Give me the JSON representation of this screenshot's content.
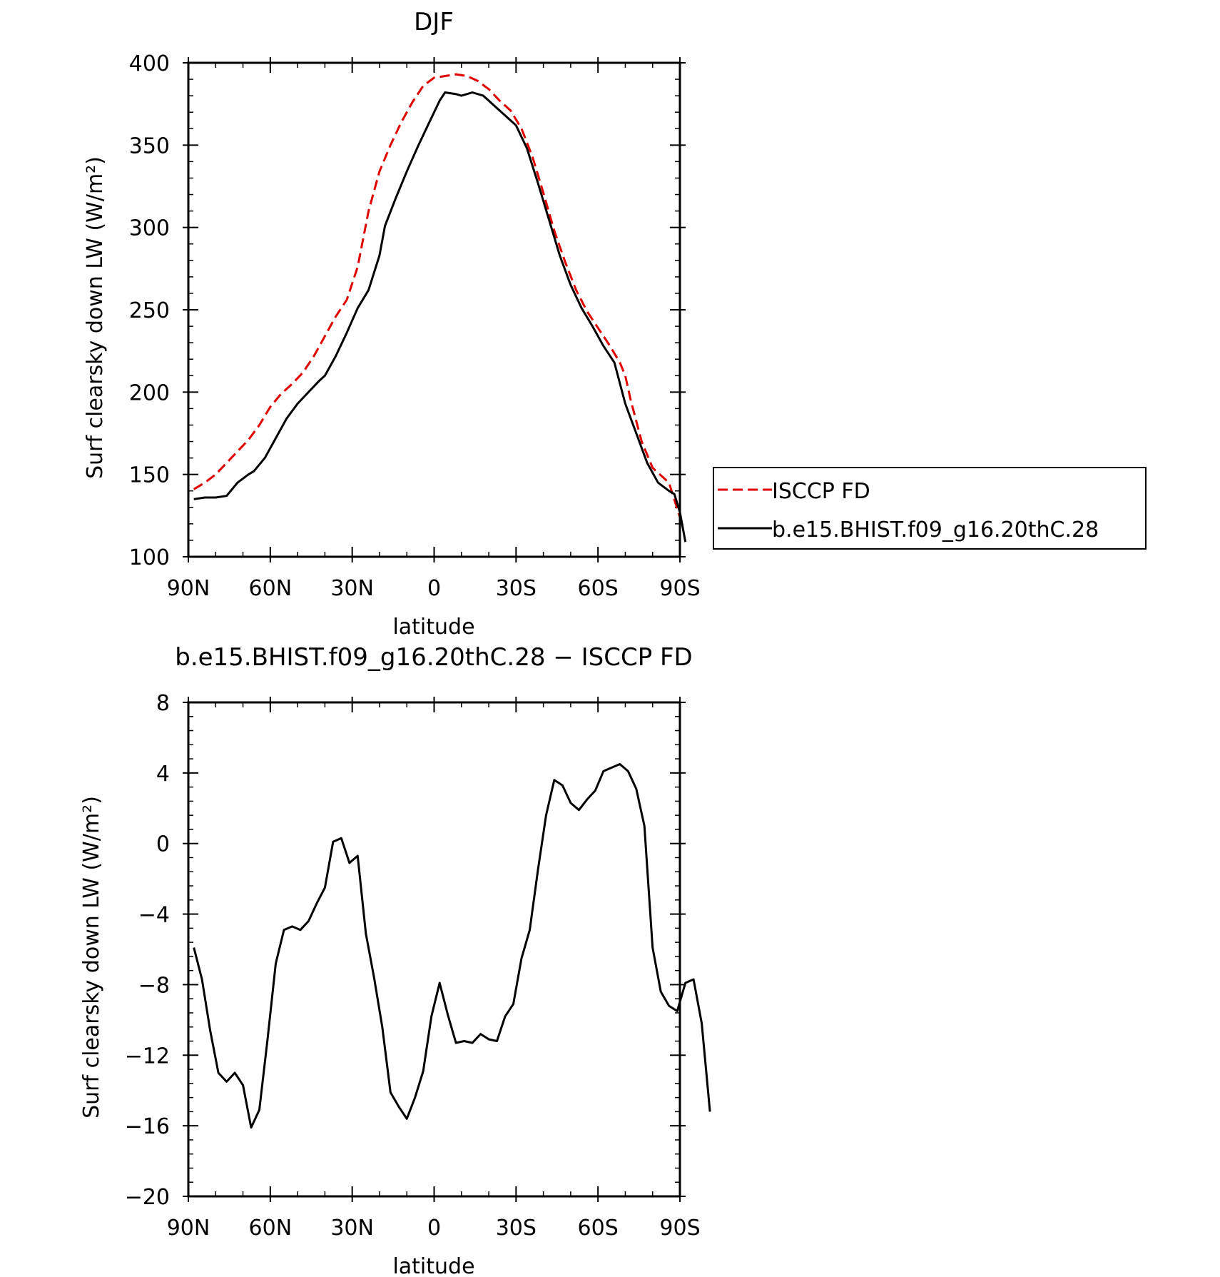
{
  "chart_data": [
    {
      "type": "line",
      "title": "DJF",
      "xlabel": "latitude",
      "ylabel": "Surf clearsky down LW (W/m²)",
      "xlim": [
        90,
        -90
      ],
      "ylim": [
        100,
        400
      ],
      "xticks": [
        {
          "value": 90,
          "label": "90N"
        },
        {
          "value": 60,
          "label": "60N"
        },
        {
          "value": 30,
          "label": "30N"
        },
        {
          "value": 0,
          "label": "0"
        },
        {
          "value": -30,
          "label": "30S"
        },
        {
          "value": -60,
          "label": "60S"
        },
        {
          "value": -90,
          "label": "90S"
        }
      ],
      "yticks": [
        {
          "value": 100,
          "label": "100"
        },
        {
          "value": 150,
          "label": "150"
        },
        {
          "value": 200,
          "label": "200"
        },
        {
          "value": 250,
          "label": "250"
        },
        {
          "value": 300,
          "label": "300"
        },
        {
          "value": 350,
          "label": "350"
        },
        {
          "value": 400,
          "label": "400"
        }
      ],
      "legend": {
        "position": "right"
      },
      "series": [
        {
          "name": "ISCCP FD",
          "color": "#e00000",
          "dash": true,
          "points": [
            [
              88,
              141
            ],
            [
              84,
              145
            ],
            [
              80,
              150
            ],
            [
              76,
              157
            ],
            [
              72,
              164
            ],
            [
              68,
              171
            ],
            [
              64,
              180
            ],
            [
              60,
              191
            ],
            [
              56,
              199
            ],
            [
              52,
              205
            ],
            [
              48,
              212
            ],
            [
              44,
              222
            ],
            [
              40,
              234
            ],
            [
              36,
              246
            ],
            [
              32,
              256
            ],
            [
              28,
              276
            ],
            [
              24,
              310
            ],
            [
              20,
              334
            ],
            [
              16,
              350
            ],
            [
              12,
              364
            ],
            [
              8,
              376
            ],
            [
              4,
              386
            ],
            [
              0,
              391
            ],
            [
              -4,
              392
            ],
            [
              -8,
              393
            ],
            [
              -12,
              392
            ],
            [
              -16,
              389
            ],
            [
              -20,
              384
            ],
            [
              -24,
              377
            ],
            [
              -28,
              371
            ],
            [
              -32,
              360
            ],
            [
              -36,
              343
            ],
            [
              -40,
              321
            ],
            [
              -44,
              298
            ],
            [
              -48,
              279
            ],
            [
              -52,
              262
            ],
            [
              -56,
              249
            ],
            [
              -60,
              239
            ],
            [
              -64,
              229
            ],
            [
              -68,
              218
            ],
            [
              -70,
              210
            ],
            [
              -72,
              195
            ],
            [
              -76,
              170
            ],
            [
              -80,
              154
            ],
            [
              -84,
              148
            ],
            [
              -86,
              145
            ],
            [
              -90,
              124
            ]
          ]
        },
        {
          "name": "b.e15.BHIST.f09_g16.20thC.28",
          "color": "#000000",
          "dash": false,
          "points": [
            [
              88,
              135
            ],
            [
              84,
              136
            ],
            [
              80,
              136
            ],
            [
              76,
              137
            ],
            [
              72,
              145
            ],
            [
              68,
              150
            ],
            [
              66,
              152
            ],
            [
              62,
              160
            ],
            [
              58,
              172
            ],
            [
              54,
              184
            ],
            [
              50,
              193
            ],
            [
              46,
              200
            ],
            [
              42,
              207
            ],
            [
              40,
              210
            ],
            [
              36,
              222
            ],
            [
              32,
              236
            ],
            [
              28,
              251
            ],
            [
              24,
              262
            ],
            [
              20,
              283
            ],
            [
              18,
              301
            ],
            [
              14,
              318
            ],
            [
              10,
              334
            ],
            [
              6,
              349
            ],
            [
              2,
              363
            ],
            [
              -2,
              377
            ],
            [
              -4,
              382
            ],
            [
              -8,
              381
            ],
            [
              -10,
              380
            ],
            [
              -14,
              382
            ],
            [
              -18,
              380
            ],
            [
              -22,
              374
            ],
            [
              -26,
              368
            ],
            [
              -30,
              362
            ],
            [
              -34,
              348
            ],
            [
              -38,
              327
            ],
            [
              -42,
              305
            ],
            [
              -46,
              283
            ],
            [
              -50,
              265
            ],
            [
              -54,
              251
            ],
            [
              -58,
              240
            ],
            [
              -62,
              228
            ],
            [
              -66,
              218
            ],
            [
              -70,
              193
            ],
            [
              -74,
              175
            ],
            [
              -78,
              157
            ],
            [
              -82,
              145
            ],
            [
              -86,
              140
            ],
            [
              -88,
              138
            ],
            [
              -90,
              127
            ],
            [
              -92,
              109
            ]
          ]
        }
      ]
    },
    {
      "type": "line",
      "title": "b.e15.BHIST.f09_g16.20thC.28 − ISCCP FD",
      "xlabel": "latitude",
      "ylabel": "Surf clearsky down LW (W/m²)",
      "xlim": [
        90,
        -90
      ],
      "ylim": [
        -20,
        8
      ],
      "xticks": [
        {
          "value": 90,
          "label": "90N"
        },
        {
          "value": 60,
          "label": "60N"
        },
        {
          "value": 30,
          "label": "30N"
        },
        {
          "value": 0,
          "label": "0"
        },
        {
          "value": -30,
          "label": "30S"
        },
        {
          "value": -60,
          "label": "60S"
        },
        {
          "value": -90,
          "label": "90S"
        }
      ],
      "yticks": [
        {
          "value": -20,
          "label": "−20"
        },
        {
          "value": -16,
          "label": "−16"
        },
        {
          "value": -12,
          "label": "−12"
        },
        {
          "value": -8,
          "label": "−8"
        },
        {
          "value": -4,
          "label": "−4"
        },
        {
          "value": 0,
          "label": "0"
        },
        {
          "value": 4,
          "label": "4"
        },
        {
          "value": 8,
          "label": "8"
        }
      ],
      "series": [
        {
          "color": "#000000",
          "dash": false,
          "points": [
            [
              88,
              -5.9
            ],
            [
              85,
              -7.7
            ],
            [
              82,
              -10.6
            ],
            [
              79,
              -13
            ],
            [
              76,
              -13.5
            ],
            [
              73,
              -13
            ],
            [
              70,
              -13.7
            ],
            [
              67,
              -16.1
            ],
            [
              64,
              -15.1
            ],
            [
              61,
              -11.1
            ],
            [
              58,
              -6.8
            ],
            [
              55,
              -4.9
            ],
            [
              52,
              -4.7
            ],
            [
              49,
              -4.9
            ],
            [
              46,
              -4.4
            ],
            [
              43,
              -3.4
            ],
            [
              40,
              -2.5
            ],
            [
              37,
              0.1
            ],
            [
              34,
              0.3
            ],
            [
              31,
              -1.1
            ],
            [
              28,
              -0.7
            ],
            [
              25,
              -5.1
            ],
            [
              22,
              -7.6
            ],
            [
              19,
              -10.4
            ],
            [
              16,
              -14.1
            ],
            [
              13,
              -14.9
            ],
            [
              10,
              -15.6
            ],
            [
              7,
              -14.4
            ],
            [
              4,
              -12.9
            ],
            [
              1,
              -9.8
            ],
            [
              -2,
              -7.9
            ],
            [
              -5,
              -9.7
            ],
            [
              -8,
              -11.3
            ],
            [
              -11,
              -11.2
            ],
            [
              -14,
              -11.3
            ],
            [
              -17,
              -10.8
            ],
            [
              -20,
              -11.1
            ],
            [
              -23,
              -11.2
            ],
            [
              -26,
              -9.8
            ],
            [
              -29,
              -9.1
            ],
            [
              -32,
              -6.5
            ],
            [
              -35,
              -4.9
            ],
            [
              -38,
              -1.5
            ],
            [
              -41,
              1.6
            ],
            [
              -44,
              3.6
            ],
            [
              -47,
              3.3
            ],
            [
              -50,
              2.3
            ],
            [
              -53,
              1.9
            ],
            [
              -56,
              2.5
            ],
            [
              -59,
              3
            ],
            [
              -62,
              4.1
            ],
            [
              -65,
              4.3
            ],
            [
              -68,
              4.5
            ],
            [
              -71,
              4.1
            ],
            [
              -74,
              3.1
            ],
            [
              -77,
              1
            ],
            [
              -80,
              -5.9
            ],
            [
              -83,
              -8.4
            ],
            [
              -86,
              -9.2
            ],
            [
              -89,
              -9.5
            ],
            [
              -92,
              -7.9
            ],
            [
              -95,
              -7.7
            ],
            [
              -98,
              -10.2
            ],
            [
              -101,
              -15.2
            ]
          ]
        }
      ]
    }
  ]
}
